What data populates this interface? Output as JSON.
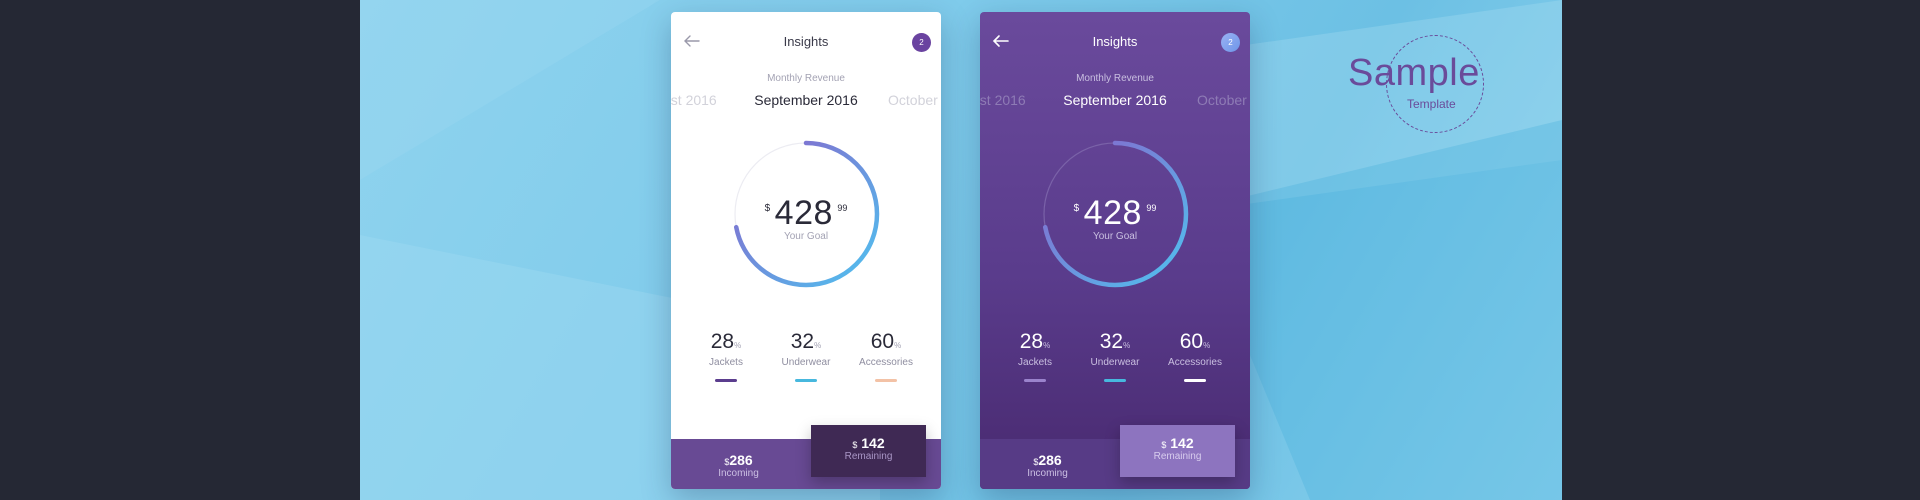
{
  "screens": [
    {
      "theme": "light",
      "title": "Insights",
      "badge": "2",
      "subtitle": "Monthly Revenue",
      "months": {
        "prev": "ust 2016",
        "current": "September 2016",
        "next": "October"
      },
      "gauge": {
        "currency": "$",
        "amount": "428",
        "cents": "99",
        "label": "Your Goal",
        "progress": 0.72
      },
      "stats": [
        {
          "value": "28",
          "unit": "%",
          "label": "Jackets",
          "color": "#5b3d8e"
        },
        {
          "value": "32",
          "unit": "%",
          "label": "Underwear",
          "color": "#47b8de"
        },
        {
          "value": "60",
          "unit": "%",
          "label": "Accessories",
          "color": "#f3c2a6"
        }
      ],
      "footer": {
        "incoming": {
          "currency": "$",
          "value": "286",
          "label": "Incoming"
        },
        "remaining": {
          "currency": "$",
          "value": "142",
          "label": "Remaining"
        }
      }
    },
    {
      "theme": "dark",
      "title": "Insights",
      "badge": "2",
      "subtitle": "Monthly Revenue",
      "months": {
        "prev": "ust 2016",
        "current": "September 2016",
        "next": "October"
      },
      "gauge": {
        "currency": "$",
        "amount": "428",
        "cents": "99",
        "label": "Your Goal",
        "progress": 0.72
      },
      "stats": [
        {
          "value": "28",
          "unit": "%",
          "label": "Jackets",
          "color": "#9a83cc"
        },
        {
          "value": "32",
          "unit": "%",
          "label": "Underwear",
          "color": "#47b8de"
        },
        {
          "value": "60",
          "unit": "%",
          "label": "Accessories",
          "color": "#ffffff"
        }
      ],
      "footer": {
        "incoming": {
          "currency": "$",
          "value": "286",
          "label": "Incoming"
        },
        "remaining": {
          "currency": "$",
          "value": "142",
          "label": "Remaining"
        }
      }
    }
  ],
  "watermark": {
    "word": "Sample",
    "sub": "Template"
  },
  "colors": {
    "page_bg": "#252834",
    "stage_bg": "#7fcbeb",
    "purple": "#6a4b9a",
    "gauge_start": "#4fc3f0",
    "gauge_end": "#8b5fc9"
  }
}
